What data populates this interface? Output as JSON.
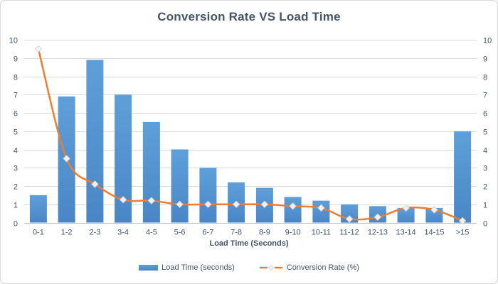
{
  "chart_data": {
    "type": "combo-bar-line",
    "title": "Conversion Rate VS Load Time",
    "xlabel": "Load Time (Seconds)",
    "ylabel": "",
    "categories": [
      "0-1",
      "1-2",
      "2-3",
      "3-4",
      "4-5",
      "5-6",
      "6-7",
      "7-8",
      "8-9",
      "9-10",
      "10-11",
      "11-12",
      "12-13",
      "13-14",
      "14-15",
      ">15"
    ],
    "series": [
      {
        "name": "Load Time (seconds)",
        "type": "bar",
        "color": "#5B9BD5",
        "values": [
          1.5,
          6.9,
          8.9,
          7,
          5.5,
          4,
          3,
          2.2,
          1.9,
          1.4,
          1.2,
          1,
          0.9,
          0.8,
          0.8,
          5
        ]
      },
      {
        "name": "Conversion Rate (%)",
        "type": "line",
        "color": "#ED7D31",
        "marker": "diamond",
        "smooth": true,
        "values": [
          9.5,
          3.5,
          2.1,
          1.25,
          1.2,
          1,
          1,
          1,
          1,
          0.9,
          0.8,
          0.2,
          0.3,
          0.8,
          0.7,
          0.1
        ]
      }
    ],
    "ylim": [
      0,
      10
    ],
    "yticks": [
      0,
      1,
      2,
      3,
      4,
      5,
      6,
      7,
      8,
      9,
      10
    ],
    "grid": true,
    "legend_position": "bottom",
    "secondary_axis_right": true
  },
  "colors": {
    "bar_top": "#5e9fd9",
    "bar_bottom": "#4a86c6",
    "line": "#ED7D31",
    "marker_fill": "#f2f2f2",
    "marker_stroke": "#d8d8d8",
    "grid": "#d9d9d9",
    "axis_line": "#bfbfbf",
    "text": "#44546a",
    "border": "#d9d9d9",
    "background": "#ffffff"
  }
}
